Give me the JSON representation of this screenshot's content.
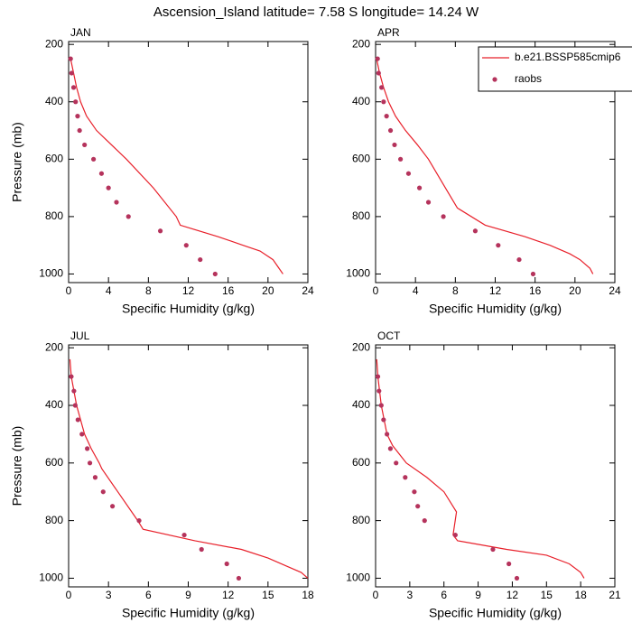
{
  "title": "Ascension_Island  latitude= 7.58 S longitude= 14.24 W",
  "chart_data": [
    {
      "type": "line",
      "label": "JAN",
      "xlabel": "Specific Humidity (g/kg)",
      "ylabel": "Pressure (mb)",
      "xlim": [
        0,
        24
      ],
      "xticks": [
        0,
        4,
        8,
        12,
        16,
        20,
        24
      ],
      "ylim": [
        190,
        1030
      ],
      "yticks": [
        200,
        400,
        600,
        800,
        1000
      ],
      "y_inverted": true,
      "series": [
        {
          "style": "line",
          "color": "#e8202a",
          "x": [
            0.2,
            0.5,
            0.8,
            1.2,
            1.8,
            2.8,
            3.7,
            5.8,
            8.5,
            10.8,
            11.2,
            15,
            17.5,
            19.2,
            20.5,
            21.1,
            21.5
          ],
          "y": [
            250,
            300,
            350,
            400,
            450,
            500,
            530,
            600,
            700,
            800,
            830,
            870,
            900,
            920,
            950,
            980,
            1000
          ]
        },
        {
          "style": "markers",
          "color": "#b5335c",
          "x": [
            0.2,
            0.3,
            0.5,
            0.7,
            0.9,
            1.1,
            1.6,
            2.5,
            3.3,
            4,
            4.8,
            6,
            9.2,
            11.8,
            13.2,
            14.7
          ],
          "y": [
            250,
            300,
            350,
            400,
            450,
            500,
            550,
            600,
            650,
            700,
            750,
            800,
            850,
            900,
            950,
            1000
          ]
        }
      ]
    },
    {
      "type": "line",
      "label": "APR",
      "xlabel": "Specific Humidity (g/kg)",
      "xlim": [
        0,
        24
      ],
      "xticks": [
        0,
        4,
        8,
        12,
        16,
        20,
        24
      ],
      "ylim": [
        190,
        1030
      ],
      "yticks": [
        200,
        400,
        600,
        800,
        1000
      ],
      "y_inverted": true,
      "legend": "upper right",
      "series": [
        {
          "name": "b.e21.BSSP585cmip6",
          "style": "line",
          "color": "#e8202a",
          "x": [
            0.1,
            0.4,
            0.8,
            1.3,
            2,
            3,
            4.2,
            5.3,
            7,
            8.2,
            11,
            15,
            17.5,
            19.5,
            20.5,
            21.5,
            21.8
          ],
          "y": [
            250,
            300,
            350,
            400,
            450,
            500,
            550,
            600,
            700,
            770,
            830,
            870,
            900,
            930,
            950,
            980,
            1000
          ]
        },
        {
          "name": "raobs",
          "style": "markers",
          "color": "#b5335c",
          "x": [
            0.2,
            0.3,
            0.6,
            0.8,
            1.1,
            1.5,
            1.9,
            2.5,
            3.3,
            4.4,
            5.3,
            6.8,
            10,
            12.3,
            14.4,
            15.8
          ],
          "y": [
            250,
            300,
            350,
            400,
            450,
            500,
            550,
            600,
            650,
            700,
            750,
            800,
            850,
            900,
            950,
            1000
          ]
        }
      ]
    },
    {
      "type": "line",
      "label": "JUL",
      "xlabel": "Specific Humidity (g/kg)",
      "ylabel": "Pressure (mb)",
      "xlim": [
        0,
        18
      ],
      "xticks": [
        0,
        3,
        6,
        9,
        12,
        15,
        18
      ],
      "ylim": [
        190,
        1030
      ],
      "yticks": [
        200,
        400,
        600,
        800,
        1000
      ],
      "y_inverted": true,
      "series": [
        {
          "style": "line",
          "color": "#e8202a",
          "x": [
            0.1,
            0.2,
            0.6,
            1.2,
            1.7,
            2.3,
            2.5,
            3.7,
            5.2,
            5.6,
            9.5,
            13,
            15,
            16.5,
            17.5,
            18
          ],
          "y": [
            240,
            300,
            400,
            500,
            550,
            600,
            620,
            700,
            800,
            830,
            870,
            900,
            930,
            960,
            980,
            1000
          ]
        },
        {
          "style": "markers",
          "color": "#b5335c",
          "x": [
            0.2,
            0.4,
            0.5,
            0.7,
            1,
            1.4,
            1.6,
            2,
            2.6,
            3.3,
            5.3,
            8.7,
            10,
            11.9,
            12.8
          ],
          "y": [
            300,
            350,
            400,
            450,
            500,
            550,
            600,
            650,
            700,
            750,
            800,
            850,
            900,
            950,
            1000
          ]
        }
      ]
    },
    {
      "type": "line",
      "label": "OCT",
      "xlabel": "Specific Humidity (g/kg)",
      "xlim": [
        0,
        21
      ],
      "xticks": [
        0,
        3,
        6,
        9,
        12,
        15,
        18,
        21
      ],
      "ylim": [
        190,
        1030
      ],
      "yticks": [
        200,
        400,
        600,
        800,
        1000
      ],
      "y_inverted": true,
      "series": [
        {
          "style": "line",
          "color": "#e8202a",
          "x": [
            0.1,
            0.2,
            0.5,
            1,
            1.5,
            2.7,
            4.5,
            6,
            7.1,
            6.8,
            7.2,
            11.5,
            15,
            17,
            18,
            18.3
          ],
          "y": [
            240,
            300,
            400,
            500,
            540,
            600,
            650,
            700,
            770,
            850,
            870,
            900,
            920,
            950,
            980,
            1000
          ]
        },
        {
          "style": "markers",
          "color": "#b5335c",
          "x": [
            0.2,
            0.3,
            0.5,
            0.7,
            1,
            1.3,
            1.8,
            2.6,
            3.4,
            3.7,
            4.3,
            7,
            10.3,
            11.7,
            12.4
          ],
          "y": [
            300,
            350,
            400,
            450,
            500,
            550,
            600,
            650,
            700,
            750,
            800,
            850,
            900,
            950,
            1000
          ]
        }
      ]
    }
  ]
}
